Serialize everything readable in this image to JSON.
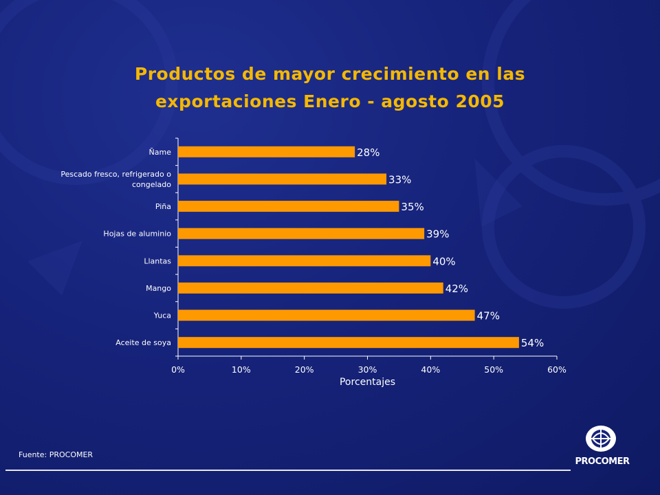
{
  "title_line1": "Productos de mayor crecimiento en las",
  "title_line2": "exportaciones Enero - agosto 2005",
  "source": "Fuente: PROCOMER",
  "logo_text": "PROCOMER",
  "colors": {
    "background": "#16237a",
    "title": "#f5b800",
    "bar": "#ff9900",
    "text": "#ffffff",
    "axis": "#ffffff"
  },
  "chart_data": {
    "type": "bar",
    "orientation": "horizontal",
    "categories": [
      "Ñame",
      "Pescado fresco, refrigerado o congelado",
      "Piña",
      "Hojas de aluminio",
      "Llantas",
      "Mango",
      "Yuca",
      "Aceite de soya"
    ],
    "category_label_lines": [
      [
        "Ñame"
      ],
      [
        "Pescado fresco, refrigerado o",
        "congelado"
      ],
      [
        "Piña"
      ],
      [
        "Hojas de aluminio"
      ],
      [
        "Llantas"
      ],
      [
        "Mango"
      ],
      [
        "Yuca"
      ],
      [
        "Aceite de soya"
      ]
    ],
    "values": [
      28,
      33,
      35,
      39,
      40,
      42,
      47,
      54
    ],
    "data_labels": [
      "28%",
      "33%",
      "35%",
      "39%",
      "40%",
      "42%",
      "47%",
      "54%"
    ],
    "xlabel": "Porcentajes",
    "xlim": [
      0,
      60
    ],
    "x_ticks": [
      0,
      10,
      20,
      30,
      40,
      50,
      60
    ],
    "x_tick_labels": [
      "0%",
      "10%",
      "20%",
      "30%",
      "40%",
      "50%",
      "60%"
    ],
    "grid": false,
    "legend": "none"
  }
}
